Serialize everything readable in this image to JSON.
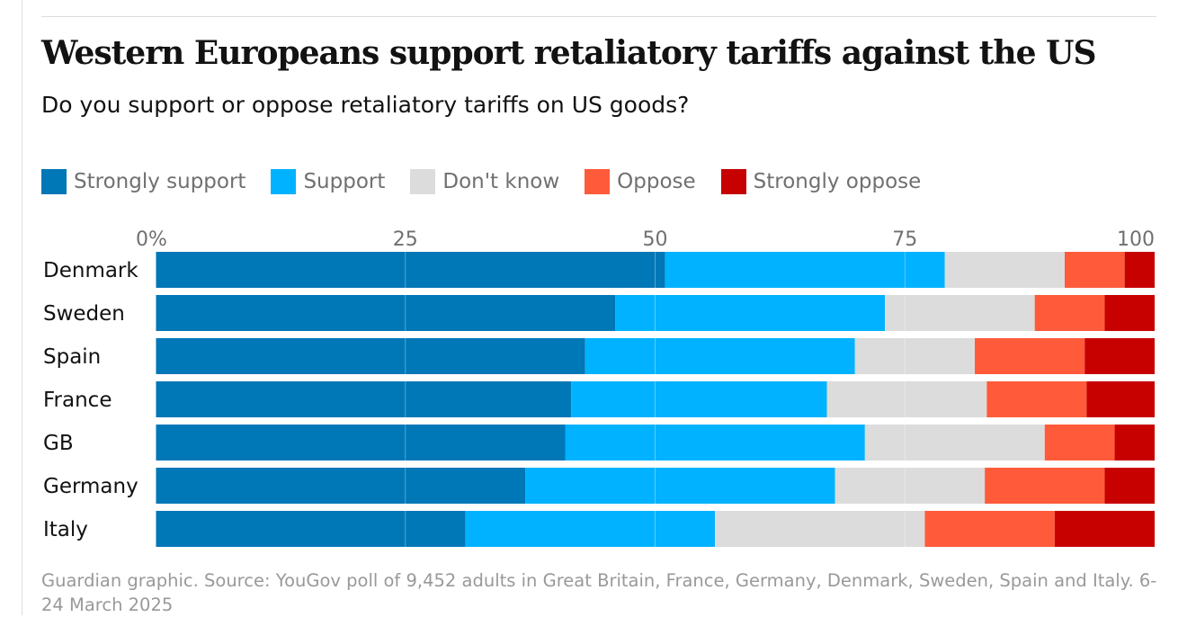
{
  "title": "Western Europeans support retaliatory tariffs against the US",
  "subtitle": "Do you support or oppose retaliatory tariffs on US goods?",
  "source": "Guardian graphic. Source: YouGov poll of 9,452 adults in Great Britain, France, Germany, Denmark, Sweden, Spain and Italy. 6-24 March 2025",
  "chart_data": {
    "type": "bar",
    "orientation": "horizontal",
    "stacked": true,
    "title": "Western Europeans support retaliatory tariffs against the US",
    "subtitle": "Do you support or oppose retaliatory tariffs on US goods?",
    "xlabel": "",
    "ylabel": "",
    "xlim": [
      0,
      100
    ],
    "x_ticks": [
      {
        "value": 0,
        "label": "0%"
      },
      {
        "value": 25,
        "label": "25"
      },
      {
        "value": 50,
        "label": "50"
      },
      {
        "value": 75,
        "label": "75"
      },
      {
        "value": 100,
        "label": "100"
      }
    ],
    "grid": true,
    "legend_position": "top",
    "categories": [
      "Denmark",
      "Sweden",
      "Spain",
      "France",
      "GB",
      "Germany",
      "Italy"
    ],
    "series": [
      {
        "name": "Strongly support",
        "color": "#0077b6",
        "values": [
          51,
          46,
          43,
          41.6,
          41,
          37,
          31
        ]
      },
      {
        "name": "Support",
        "color": "#00b2ff",
        "values": [
          28,
          27,
          27,
          25.6,
          30,
          31,
          25
        ]
      },
      {
        "name": "Don't know",
        "color": "#dcdcdc",
        "values": [
          12,
          15,
          12,
          16,
          18,
          15,
          21
        ]
      },
      {
        "name": "Oppose",
        "color": "#ff5b3a",
        "values": [
          6,
          7,
          11,
          10,
          7,
          12,
          13
        ]
      },
      {
        "name": "Strongly oppose",
        "color": "#c70000",
        "values": [
          3,
          5,
          7,
          6.8,
          4,
          5,
          10
        ]
      }
    ]
  }
}
